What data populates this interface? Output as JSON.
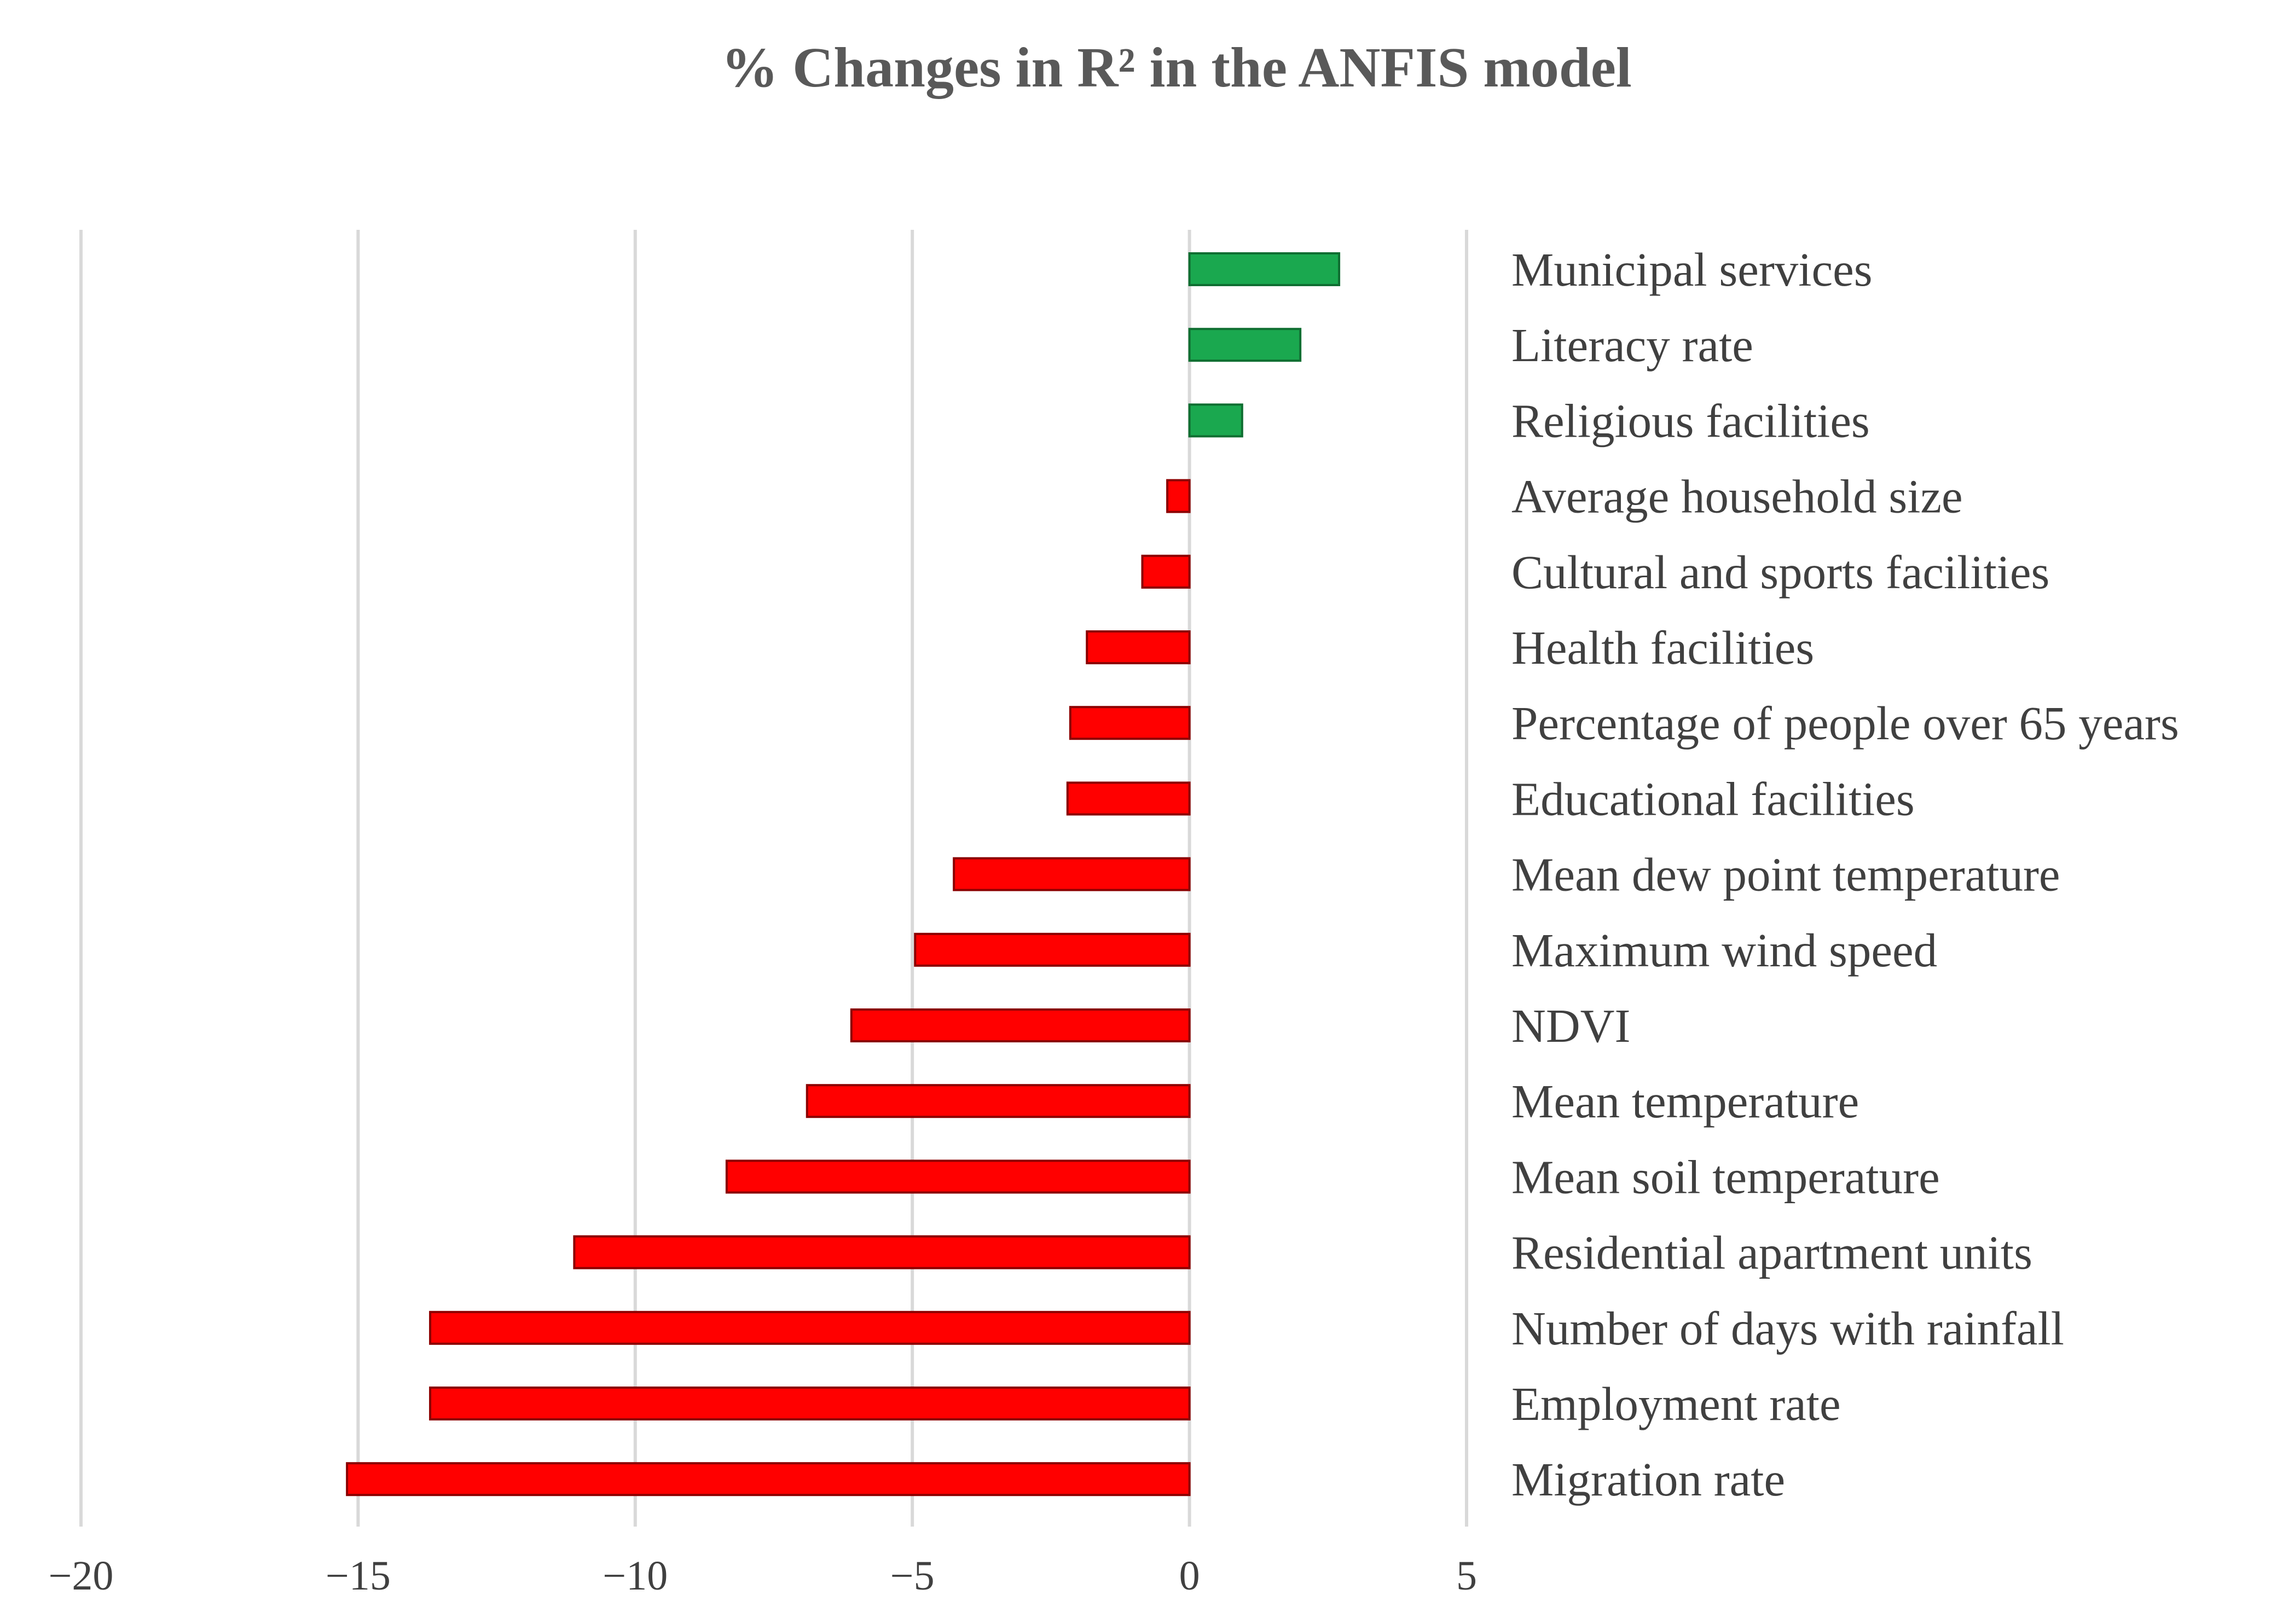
{
  "chart_data": {
    "type": "bar",
    "orientation": "horizontal",
    "title": "% Changes in R² in the ANFIS model",
    "xlabel": "",
    "ylabel": "",
    "xlim": [
      -20,
      5
    ],
    "x_ticks": [
      -20,
      -15,
      -10,
      -5,
      0,
      5
    ],
    "x_tick_labels": [
      "−20",
      "−15",
      "−10",
      "−5",
      "0",
      "5"
    ],
    "grid": true,
    "legend": "none",
    "colors": {
      "positive": "#1aa84f",
      "positive_edge": "#0f6e31",
      "negative": "#ff0000",
      "negative_edge": "#8b0000",
      "grid": "#d9d9d9",
      "text": "#404040",
      "title": "#595959"
    },
    "categories": [
      "Municipal services",
      "Literacy rate",
      "Religious facilities",
      "Average household size",
      "Cultural and sports facilities",
      "Health facilities",
      "Percentage of people over 65 years",
      "Educational facilities",
      "Mean dew point temperature",
      "Maximum wind speed",
      "NDVI",
      "Mean temperature",
      "Mean soil temperature",
      "Residential apartment units",
      "Number of days with rainfall",
      "Employment rate",
      "Migration rate"
    ],
    "values": [
      2.7,
      2.0,
      0.95,
      -0.4,
      -0.85,
      -1.85,
      -2.15,
      -2.2,
      -4.25,
      -4.95,
      -6.1,
      -6.9,
      -8.35,
      -11.1,
      -13.7,
      -13.7,
      -15.2
    ]
  }
}
